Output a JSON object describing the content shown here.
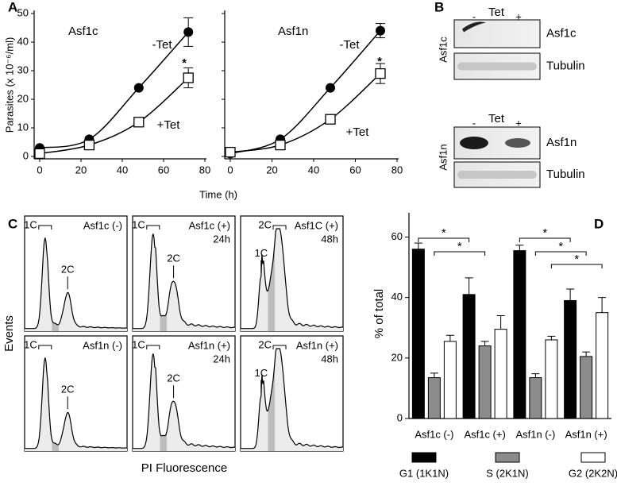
{
  "panel_letters": [
    "A",
    "B",
    "C",
    "D"
  ],
  "chart_data": [
    {
      "type": "line",
      "title": "Asf1c",
      "ylabel": "Parasites (x 10⁻⁶/ml)",
      "xlabel": "Time (h)",
      "x": [
        0,
        24,
        48,
        72
      ],
      "xlim": [
        0,
        80
      ],
      "xticks": [
        0,
        20,
        40,
        60,
        80
      ],
      "ylim": [
        0,
        50
      ],
      "yticks": [
        0,
        10,
        20,
        30,
        40,
        50
      ],
      "series": [
        {
          "name": "-Tet",
          "color": "#000000",
          "marker": "circle",
          "values": [
            3,
            6,
            24,
            43.5
          ],
          "errors": [
            0,
            0,
            0,
            5
          ]
        },
        {
          "name": "+Tet",
          "color": "#000000",
          "marker": "square",
          "values": [
            1,
            4,
            12,
            27.5
          ],
          "errors": [
            0,
            0,
            0,
            3.5
          ]
        }
      ],
      "annotations": [
        "*"
      ]
    },
    {
      "type": "line",
      "title": "Asf1n",
      "x": [
        0,
        24,
        48,
        72
      ],
      "xlim": [
        0,
        80
      ],
      "xticks": [
        0,
        20,
        40,
        60,
        80
      ],
      "ylim": [
        0,
        50
      ],
      "yticks": [
        0,
        10,
        20,
        30,
        40,
        50
      ],
      "ytick_labels": false,
      "series": [
        {
          "name": "-Tet",
          "color": "#000000",
          "marker": "circle",
          "values": [
            1,
            6,
            24,
            44
          ],
          "errors": [
            0,
            0,
            0,
            2.5
          ]
        },
        {
          "name": "+Tet",
          "color": "#000000",
          "marker": "square",
          "values": [
            1.5,
            4,
            13,
            29
          ],
          "errors": [
            0,
            0,
            0,
            3.5
          ]
        }
      ],
      "annotations": [
        "*"
      ]
    },
    {
      "type": "bar",
      "ylabel": "% of total",
      "categories": [
        "Asf1c (-)",
        "Asf1c (+)",
        "Asf1n (-)",
        "Asf1n (+)"
      ],
      "ylim": [
        0,
        68
      ],
      "yticks": [
        0,
        20,
        40,
        60
      ],
      "legend": "bottom",
      "series": [
        {
          "name": "G1 (1K1N)",
          "color": "#000000",
          "values": [
            56,
            41,
            55.5,
            39
          ],
          "errors": [
            2,
            5.5,
            1.8,
            3.8
          ]
        },
        {
          "name": "S (2K1N)",
          "color": "#8c8c8c",
          "values": [
            13.5,
            24,
            13.5,
            20.5
          ],
          "errors": [
            1.5,
            1.5,
            1.3,
            1.5
          ]
        },
        {
          "name": "G2 (2K2N)",
          "color": "#ffffff",
          "values": [
            25.5,
            29.5,
            26,
            35
          ],
          "errors": [
            2,
            4.5,
            1.2,
            5
          ]
        }
      ],
      "annotations": [
        "*",
        "*",
        "*",
        "*",
        "*"
      ]
    }
  ],
  "blot": {
    "sections": [
      {
        "name": "Asf1c",
        "treatment": "Tet",
        "minus": "-",
        "plus": "+",
        "bands": [
          "Asf1c",
          "Tubulin"
        ]
      },
      {
        "name": "Asf1n",
        "treatment": "Tet",
        "minus": "-",
        "plus": "+",
        "bands": [
          "Asf1n",
          "Tubulin"
        ]
      }
    ]
  },
  "flow": {
    "ylabel": "Events",
    "xlabel": "PI Fluorescence",
    "panels": [
      {
        "title": [
          "Asf1c (-)"
        ],
        "peaks": [
          "1C",
          "2C"
        ]
      },
      {
        "title": [
          "Asf1c (+)",
          "24h"
        ],
        "peaks": [
          "1C",
          "2C"
        ]
      },
      {
        "title": [
          "Asf1C (+)",
          "48h"
        ],
        "peaks": [
          "1C",
          "2C"
        ]
      },
      {
        "title": [
          "Asf1n (-)"
        ],
        "peaks": [
          "1C",
          "2C"
        ]
      },
      {
        "title": [
          "Asf1n (+)",
          "24h"
        ],
        "peaks": [
          "1C",
          "2C"
        ]
      },
      {
        "title": [
          "Asf1n (+)",
          "48h"
        ],
        "peaks": [
          "1C",
          "2C"
        ]
      }
    ]
  }
}
